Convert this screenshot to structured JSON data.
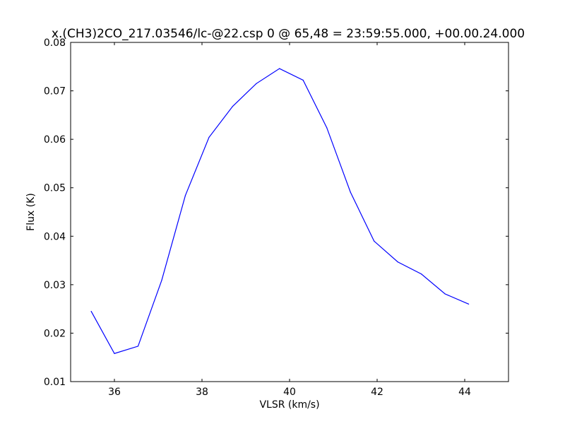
{
  "chart_data": {
    "type": "line",
    "title": "x.(CH3)2CO_217.03546/lc-@22.csp 0 @ 65,48 = 23:59:55.000, +00.00.24.000",
    "xlabel": "VLSR (km/s)",
    "ylabel": "Flux (K)",
    "xlim": [
      35,
      45
    ],
    "ylim": [
      0.01,
      0.08
    ],
    "xticks": [
      36,
      38,
      40,
      42,
      44
    ],
    "yticks": [
      0.01,
      0.02,
      0.03,
      0.04,
      0.05,
      0.06,
      0.07,
      0.08
    ],
    "xtick_labels": [
      "36",
      "38",
      "40",
      "42",
      "44"
    ],
    "ytick_labels": [
      "0.01",
      "0.02",
      "0.03",
      "0.04",
      "0.05",
      "0.06",
      "0.07",
      "0.08"
    ],
    "grid": false,
    "series": [
      {
        "color": "#0000ff",
        "x": [
          35.47,
          36.0,
          36.54,
          37.08,
          37.62,
          38.16,
          38.7,
          39.24,
          39.77,
          40.31,
          40.85,
          41.39,
          41.93,
          42.47,
          43.01,
          43.55,
          44.09
        ],
        "y": [
          0.0245,
          0.0158,
          0.0173,
          0.0309,
          0.0484,
          0.0604,
          0.0668,
          0.0715,
          0.0746,
          0.0722,
          0.0624,
          0.0491,
          0.039,
          0.0347,
          0.0322,
          0.0281,
          0.026
        ]
      }
    ]
  }
}
